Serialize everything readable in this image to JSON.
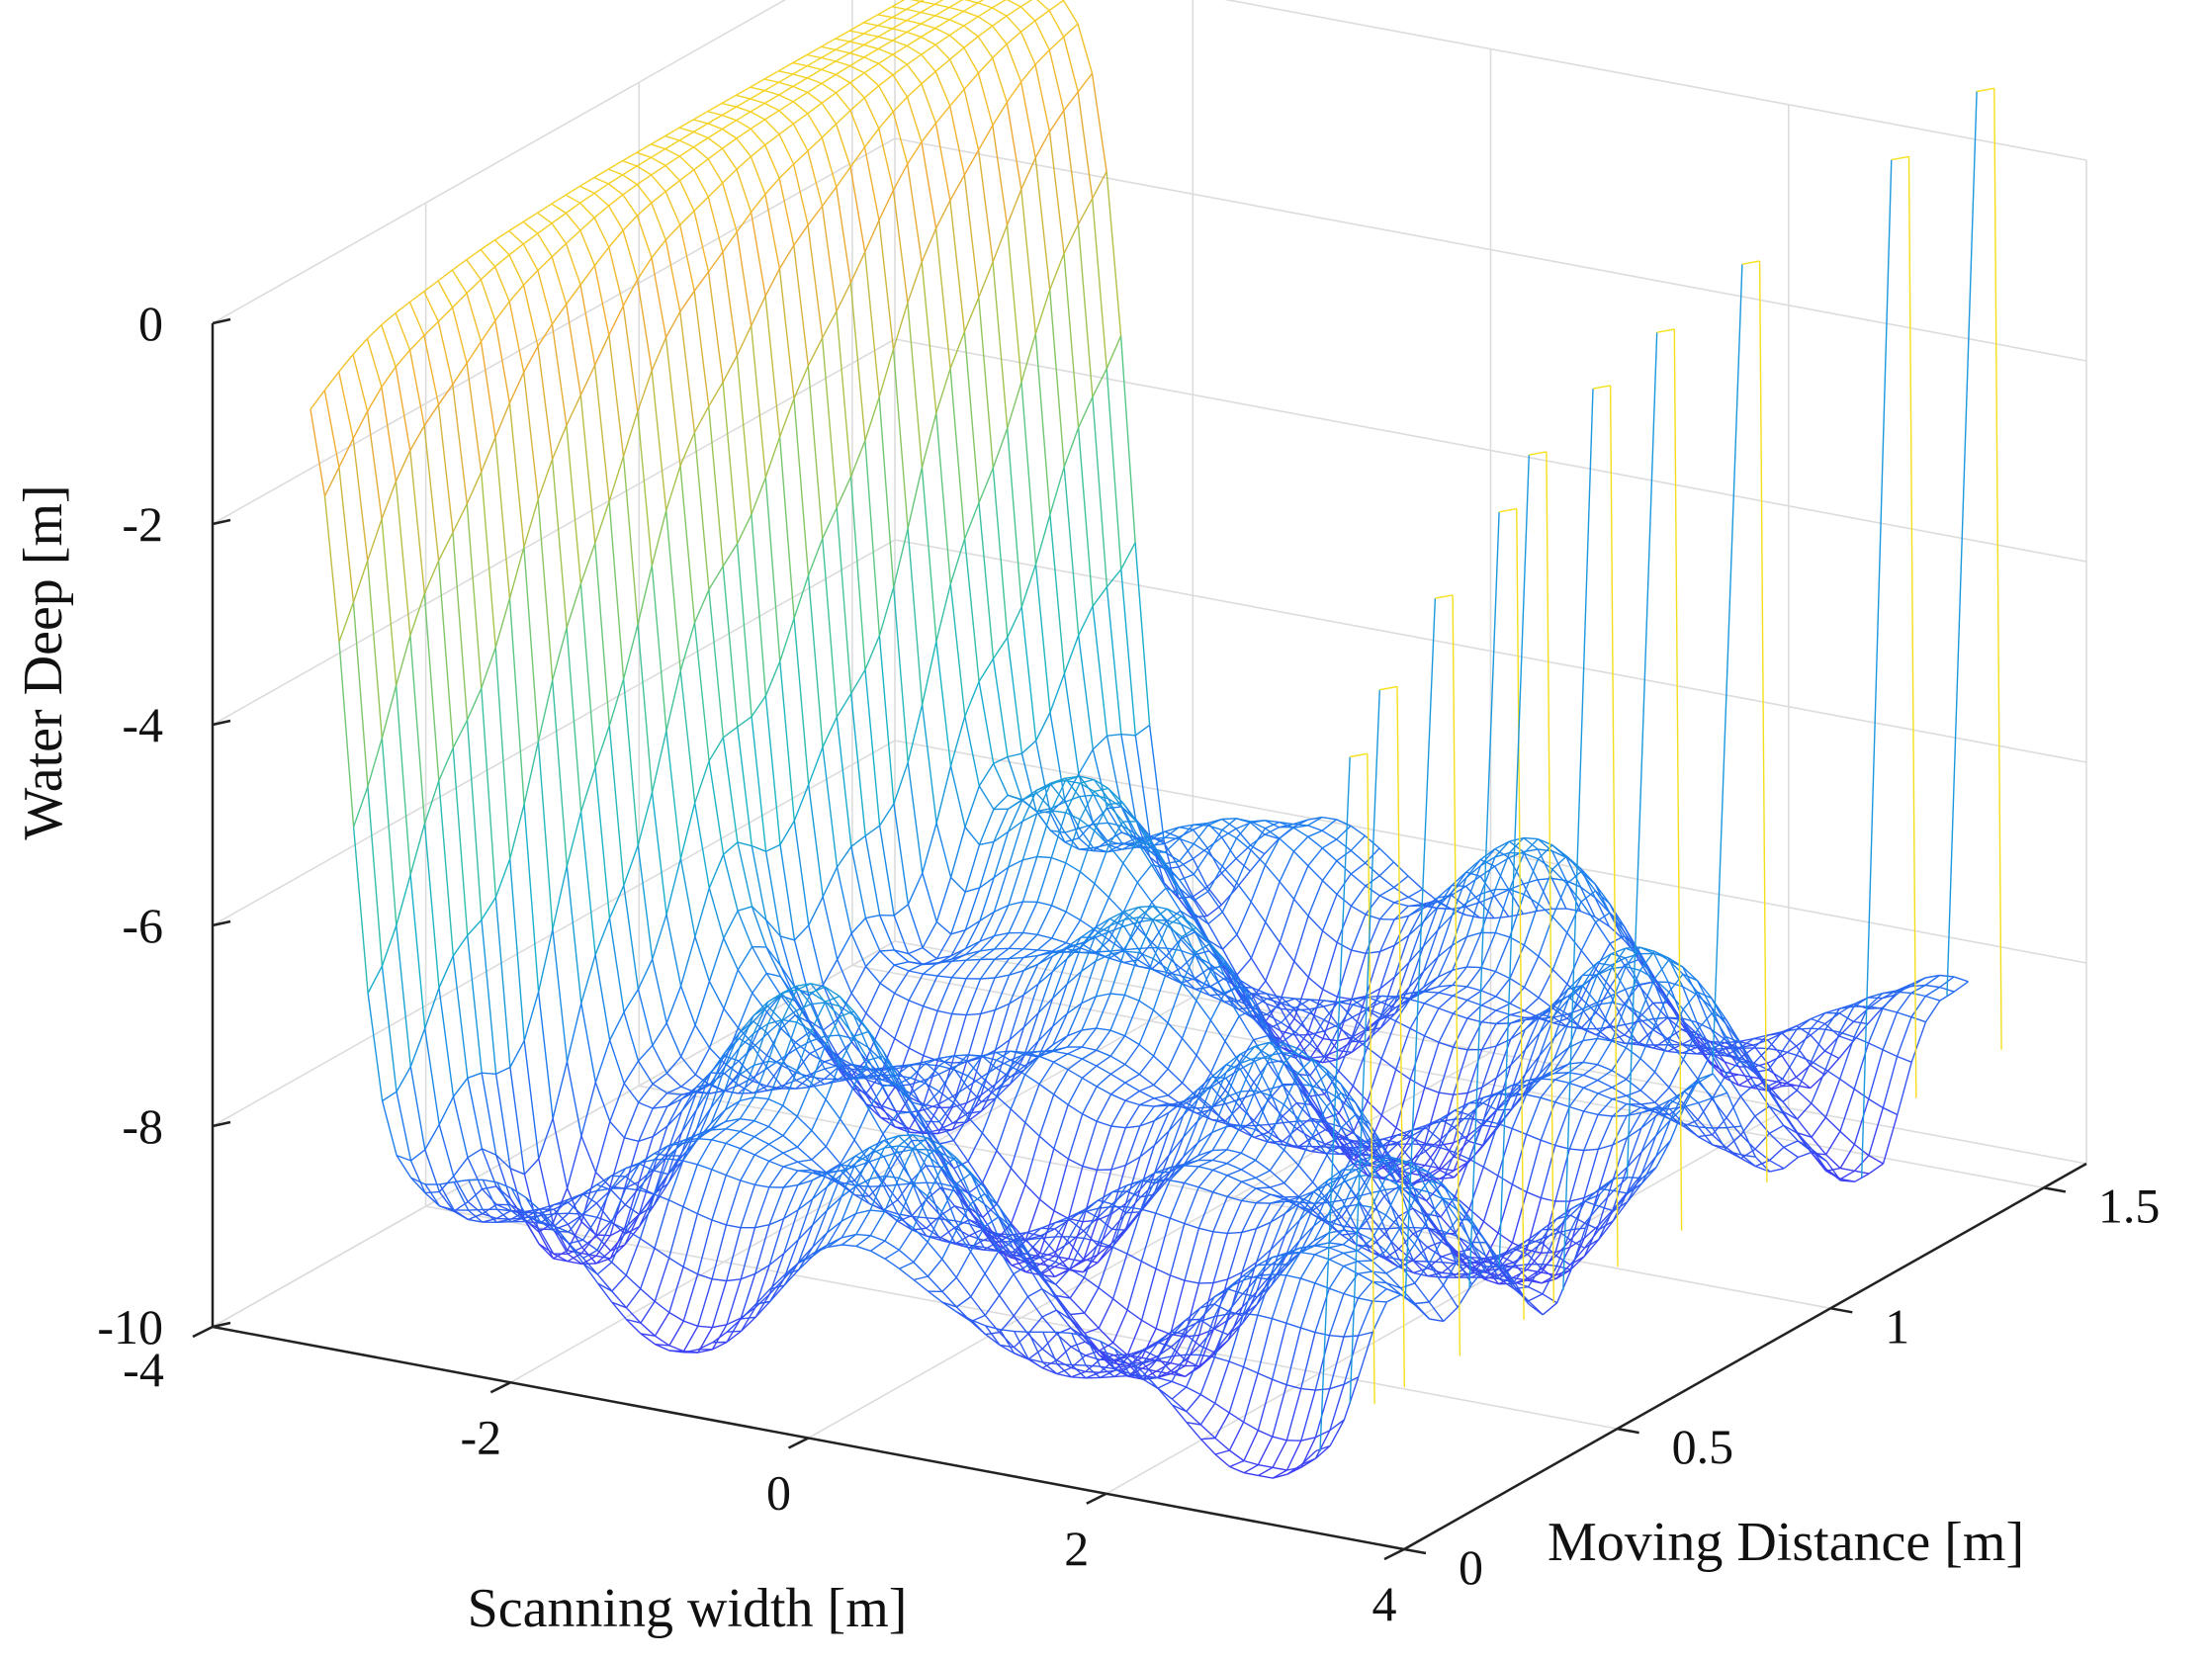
{
  "chart_data": {
    "type": "mesh3d",
    "title": "",
    "xlabel": "Scanning width [m]",
    "ylabel": "Moving Distance [m]",
    "zlabel": "Water Deep [m]",
    "xlim": [
      -4,
      4
    ],
    "ylim": [
      0,
      1.6
    ],
    "zlim": [
      -10,
      0
    ],
    "xticks": [
      -4,
      -2,
      0,
      2,
      4
    ],
    "yticks": [
      0,
      0.5,
      1,
      1.5
    ],
    "zticks": [
      0,
      -2,
      -4,
      -6,
      -8,
      -10
    ],
    "xtick_labels": [
      "-4",
      "-2",
      "0",
      "2",
      "4"
    ],
    "ytick_labels": [
      "0",
      "0.5",
      "1",
      "1.5"
    ],
    "ztick_labels": [
      "0",
      "-2",
      "-4",
      "-6",
      "-8",
      "-10"
    ],
    "grid": true,
    "colormap": "parula",
    "colormap_stops": [
      "#3d3ff5",
      "#1f7cf0",
      "#18b3c9",
      "#4fc78b",
      "#a8c44a",
      "#f0a935",
      "#f6e51b"
    ],
    "surface": {
      "description_values": {
        "left_wall_x": -3.5,
        "left_wall_top_z": 0,
        "seabed_z_range": [
          -9.5,
          -7
        ],
        "spike_top_z_range": [
          -2.5,
          0.8
        ],
        "spike_x": 3.6
      }
    }
  }
}
